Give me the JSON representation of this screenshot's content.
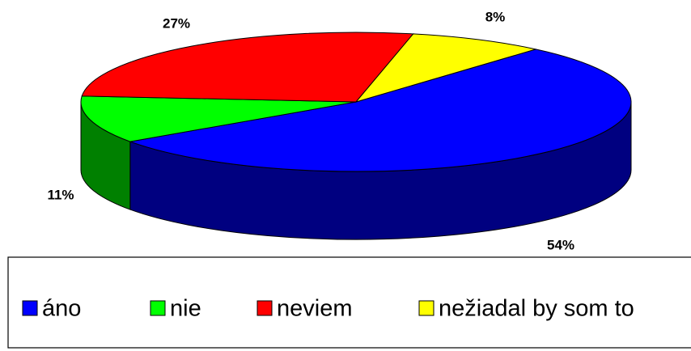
{
  "chart_data": {
    "type": "pie3d",
    "categories": [
      "áno",
      "nie",
      "neviem",
      "nežiadal by som to"
    ],
    "values": [
      54,
      11,
      27,
      8
    ],
    "value_labels": [
      "54%",
      "11%",
      "27%",
      "8%"
    ],
    "colors": [
      "#0000ff",
      "#00ff00",
      "#ff0000",
      "#ffff00"
    ],
    "legend": "bottom"
  }
}
